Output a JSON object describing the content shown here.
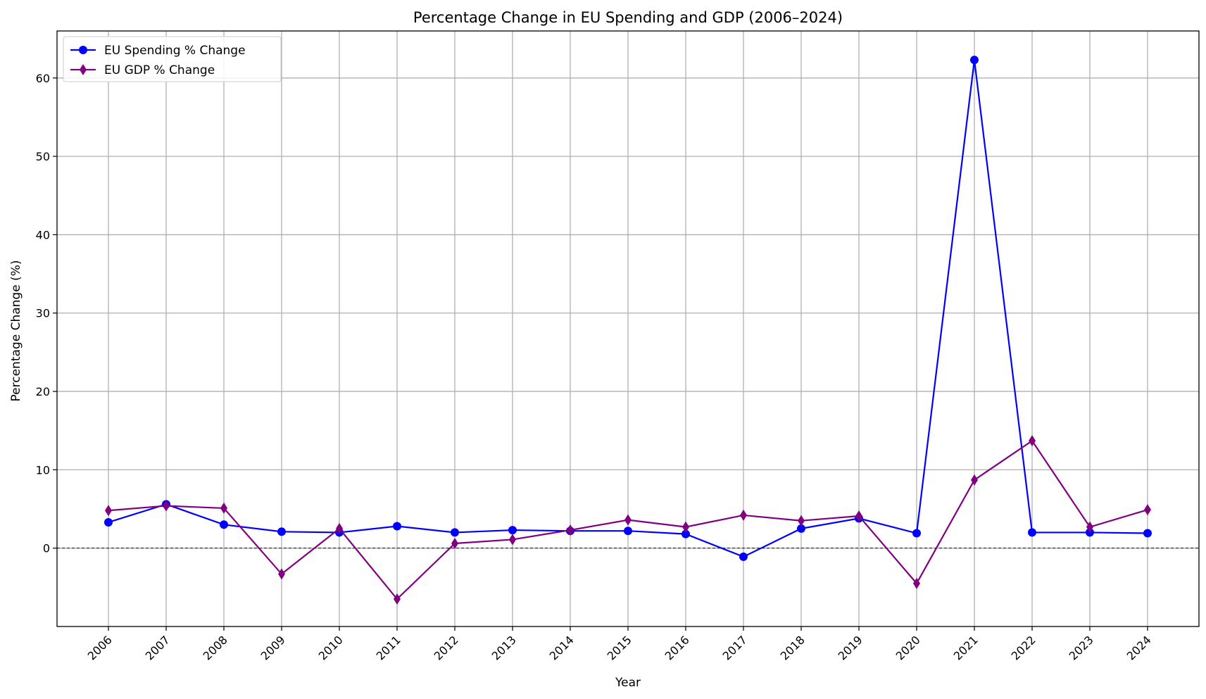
{
  "chart_data": {
    "type": "line",
    "title": "Percentage Change in EU Spending and GDP (2006–2024)",
    "xlabel": "Year",
    "ylabel": "Percentage Change (%)",
    "x": [
      "2006",
      "2007",
      "2008",
      "2009",
      "2010",
      "2011",
      "2012",
      "2013",
      "2014",
      "2015",
      "2016",
      "2017",
      "2018",
      "2019",
      "2020",
      "2021",
      "2022",
      "2023",
      "2024"
    ],
    "ylim": [
      -10,
      66
    ],
    "yticks": [
      0,
      10,
      20,
      30,
      40,
      50,
      60
    ],
    "grid": true,
    "zero_line": true,
    "legend_position": "top-left",
    "series": [
      {
        "name": "EU Spending % Change",
        "color": "#0000ff",
        "marker": "circle",
        "values": [
          3.3,
          5.6,
          3.0,
          2.1,
          2.0,
          2.8,
          2.0,
          2.3,
          2.2,
          2.2,
          1.8,
          -1.1,
          2.5,
          3.8,
          1.9,
          62.3,
          2.0,
          2.0,
          1.9
        ]
      },
      {
        "name": "EU GDP % Change",
        "color": "#800080",
        "marker": "diamond",
        "values": [
          4.8,
          5.4,
          5.1,
          -3.3,
          2.5,
          -6.5,
          0.6,
          1.1,
          2.3,
          3.6,
          2.7,
          4.2,
          3.5,
          4.1,
          -4.5,
          8.7,
          13.7,
          2.7,
          4.9
        ]
      }
    ]
  }
}
